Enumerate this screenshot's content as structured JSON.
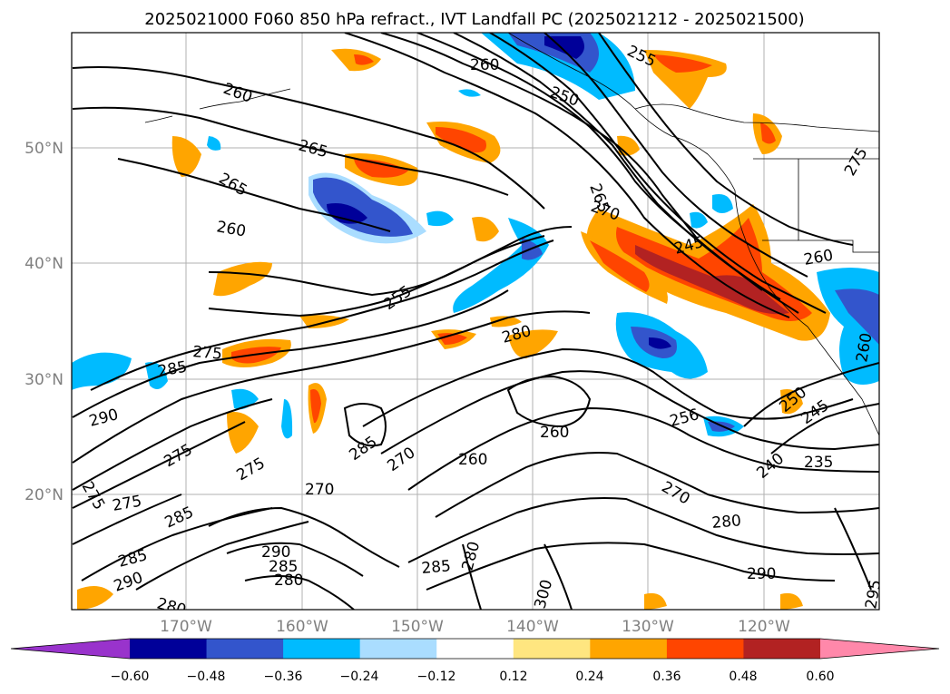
{
  "title": "2025021000 F060 850 hPa refract., IVT Landfall PC (2025021212 - 2025021500)",
  "lat_labels": [
    "50°N",
    "40°N",
    "30°N",
    "20°N"
  ],
  "lon_labels": [
    "170°W",
    "160°W",
    "150°W",
    "140°W",
    "130°W",
    "120°W"
  ],
  "colorbar": {
    "ticks": [
      "−0.60",
      "−0.48",
      "−0.36",
      "−0.24",
      "−0.12",
      "0.12",
      "0.24",
      "0.36",
      "0.48",
      "0.60"
    ],
    "colors": [
      "#9933cc",
      "#000099",
      "#3355cc",
      "#00bbff",
      "#aaddff",
      "#ffffff",
      "#ffe680",
      "#ffa500",
      "#ff4500",
      "#b22222",
      "#ff88aa"
    ]
  },
  "contour_labels": [
    "260",
    "255",
    "250",
    "265",
    "260",
    "265",
    "260",
    "275",
    "285",
    "290",
    "275",
    "275",
    "275",
    "285",
    "275",
    "290",
    "285",
    "280",
    "290",
    "285",
    "280",
    "255",
    "270",
    "280",
    "260",
    "285",
    "270",
    "260",
    "270",
    "280",
    "285",
    "280",
    "300",
    "245",
    "265",
    "260",
    "256",
    "250",
    "245",
    "240",
    "235",
    "290",
    "260",
    "295",
    "270",
    "275"
  ]
}
